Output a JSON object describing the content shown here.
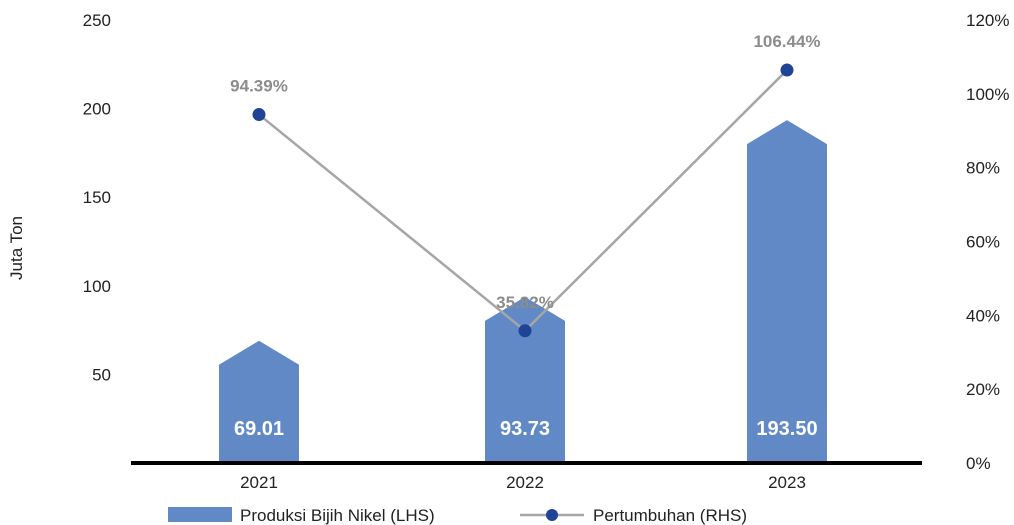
{
  "chart_data": {
    "type": "bar",
    "categories": [
      "2021",
      "2022",
      "2023"
    ],
    "ylabel": "Juta Ton",
    "left_ylim": [
      0,
      250
    ],
    "left_ticks": [
      "50",
      "100",
      "150",
      "200",
      "250"
    ],
    "right_ylim": [
      0,
      120
    ],
    "right_ticks": [
      "0%",
      "20%",
      "40%",
      "60%",
      "80%",
      "100%",
      "120%"
    ],
    "series": [
      {
        "name": "Produksi Bijih Nikel (LHS)",
        "kind": "bar",
        "axis": "left",
        "color": "#6089c6",
        "values": [
          69.01,
          93.73,
          193.5
        ],
        "labels": [
          "69.01",
          "93.73",
          "193.50"
        ]
      },
      {
        "name": "Pertumbuhan (RHS)",
        "kind": "line",
        "axis": "right",
        "color": "#a6a6a6",
        "marker_color": "#1f4496",
        "values": [
          94.39,
          35.82,
          106.44
        ],
        "labels": [
          "94.39%",
          "35.82%",
          "106.44%"
        ]
      }
    ],
    "legend_position": "bottom",
    "grid": false
  }
}
